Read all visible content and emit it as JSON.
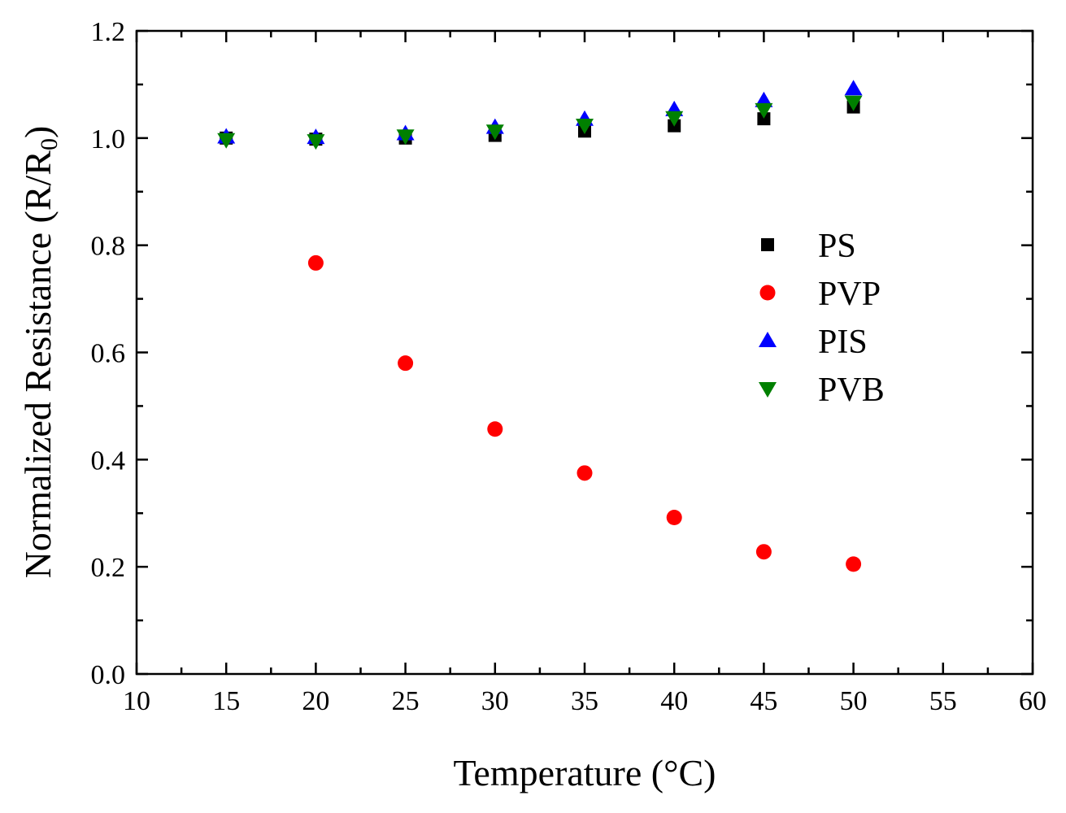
{
  "chart_data": {
    "type": "scatter",
    "title": "",
    "xlabel": "Temperature (°C)",
    "ylabel_main": "Normalized Resistance (R/R",
    "ylabel_sub": "0",
    "ylabel_end": ")",
    "xlim": [
      10,
      60
    ],
    "ylim": [
      0,
      1.2
    ],
    "x_ticks": [
      10,
      15,
      20,
      25,
      30,
      35,
      40,
      45,
      50,
      55,
      60
    ],
    "x_tick_labels": [
      "10",
      "15",
      "20",
      "25",
      "30",
      "35",
      "40",
      "45",
      "50",
      "55",
      "60"
    ],
    "y_ticks": [
      0,
      0.2,
      0.4,
      0.6,
      0.8,
      1.0,
      1.2
    ],
    "y_tick_labels": [
      "0.0",
      "0.2",
      "0.4",
      "0.6",
      "0.8",
      "1.0",
      "1.2"
    ],
    "grid": false,
    "legend_position": "right-middle",
    "series": [
      {
        "name": "PS",
        "marker": "square",
        "color": "#000000",
        "x": [
          15,
          20,
          25,
          30,
          35,
          40,
          45,
          50
        ],
        "y": [
          1.0,
          0.998,
          1.0,
          1.005,
          1.013,
          1.023,
          1.036,
          1.058
        ]
      },
      {
        "name": "PVP",
        "marker": "circle",
        "color": "#ff0000",
        "x": [
          20,
          25,
          30,
          35,
          40,
          45,
          50
        ],
        "y": [
          0.767,
          0.58,
          0.457,
          0.375,
          0.292,
          0.228,
          0.205
        ]
      },
      {
        "name": "PIS",
        "marker": "triangle-up",
        "color": "#0000ff",
        "x": [
          15,
          20,
          25,
          30,
          35,
          40,
          45,
          50
        ],
        "y": [
          1.002,
          1.001,
          1.008,
          1.02,
          1.035,
          1.053,
          1.07,
          1.092
        ]
      },
      {
        "name": "PVB",
        "marker": "triangle-down",
        "color": "#008000",
        "x": [
          15,
          20,
          25,
          30,
          35,
          40,
          45,
          50
        ],
        "y": [
          0.997,
          0.995,
          1.004,
          1.013,
          1.024,
          1.038,
          1.053,
          1.067
        ]
      }
    ]
  }
}
